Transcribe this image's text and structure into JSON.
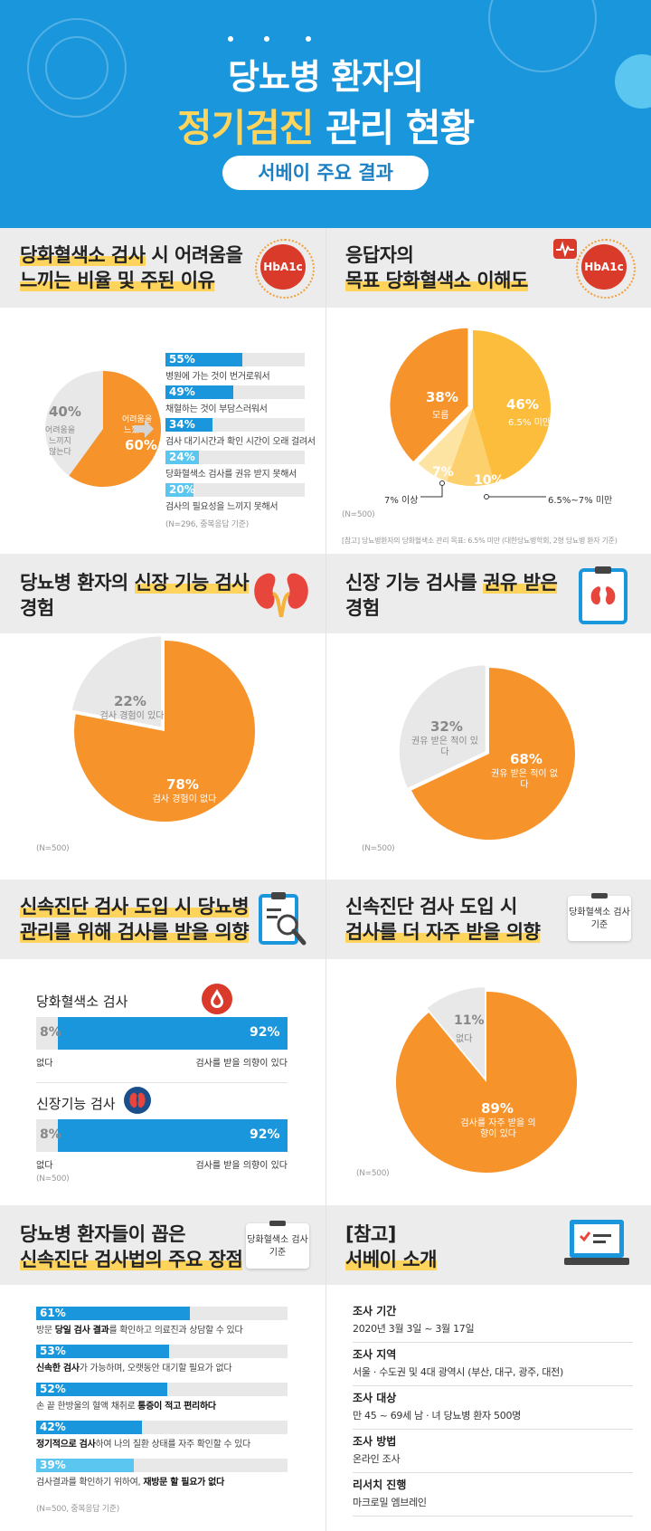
{
  "header": {
    "title_line1": "당뇨병 환자의",
    "title_line2_a": "정기검진",
    "title_line2_b": "관리 현황",
    "subtitle": "서베이 주요 결과"
  },
  "sections": {
    "s1": {
      "title_pre": "당화혈색소 검사",
      "title_mid": " 시 어려움을",
      "title_hl2": "느끼는 비율 및 주된 이유",
      "badge": "HbA1c",
      "note": "(N=296, 중복응답 기준)"
    },
    "s2": {
      "title_line1": "응답자의",
      "title_line2": "목표 당화혈색소 이해도",
      "badge": "HbA1c",
      "n_note": "(N=500)",
      "ref_note": "[참고] 당뇨병환자의 당화혈색소 관리 목표: 6.5% 미만 (대한당뇨병학회, 2형 당뇨병 환자 기준)"
    },
    "s3": {
      "title_pre": "당뇨병 환자의 ",
      "title_hl": "신장 기능 검사",
      "title_line2": "경험",
      "n_note": "(N=500)"
    },
    "s4": {
      "title_pre": "신장 기능 검사를 ",
      "title_hl": "권유 받은",
      "title_line2": "경험",
      "n_note": "(N=500)"
    },
    "s5": {
      "title_line1": "신속진단 검사 도입 시 당뇨병",
      "title_line2": "관리를 위해 검사를 받을 의향",
      "n_note": "(N=500)",
      "group1_title": "당화혈색소 검사",
      "group2_title": "신장기능 검사"
    },
    "s6": {
      "title_line1": "신속진단 검사 도입 시",
      "title_line2": "검사를 더 자주 받을 의향",
      "tag": "당화혈색소 검사 기준",
      "n_note": "(N=500)"
    },
    "s7": {
      "title_line1": "당뇨병 환자들이 꼽은",
      "title_line2": "신속진단 검사법의 주요 장점",
      "tag": "당화혈색소 검사 기준",
      "note": "(N=500, 중복응답 기준)"
    },
    "s8": {
      "title_line1": "[참고]",
      "title_line2": "서베이 소개",
      "items": [
        {
          "k": "조사 기간",
          "v": "2020년 3월 3일 ~ 3월 17일"
        },
        {
          "k": "조사 지역",
          "v": "서울 · 수도권 및 4대 광역시 (부산, 대구, 광주, 대전)"
        },
        {
          "k": "조사 대상",
          "v": "만 45 ~ 69세 남 · 녀 당뇨병 환자 500명"
        },
        {
          "k": "조사 방법",
          "v": "온라인 조사"
        },
        {
          "k": "리서치 진행",
          "v": "마크로밀 엠브레인"
        }
      ]
    }
  },
  "colors": {
    "orange": "#f7932b",
    "blue": "#1a96dc",
    "gray": "#e8e8e8",
    "yellow": "#ffd45c"
  },
  "chart_data": [
    {
      "type": "pie",
      "id": "difficulty",
      "slices": [
        {
          "label": "어려움을 느꼈다",
          "value": 60,
          "pct": "60%",
          "color": "#f7932b"
        },
        {
          "label": "어려움을 느끼지 않는다",
          "value": 40,
          "pct": "40%",
          "color": "#e8e8e8"
        }
      ]
    },
    {
      "type": "bar",
      "id": "reasons",
      "categories": [
        "병원에 가는 것이 번거로워서",
        "채혈하는 것이 부담스러워서",
        "검사 대기시간과 확인 시간이 오래 걸려서",
        "당화혈색소 검사를 권유 받지 못해서",
        "검사의 필요성을 느끼지 못해서"
      ],
      "values": [
        55,
        49,
        34,
        24,
        20
      ],
      "labels": [
        "55%",
        "49%",
        "34%",
        "24%",
        "20%"
      ],
      "colors": [
        "#1a96dc",
        "#1a96dc",
        "#1a96dc",
        "#5bc6f0",
        "#5bc6f0"
      ],
      "xlim": [
        0,
        100
      ]
    },
    {
      "type": "pie",
      "id": "target_understanding",
      "slices": [
        {
          "label": "6.5% 미만",
          "value": 46,
          "pct": "46%",
          "color": "#fdbd3c"
        },
        {
          "label": "6.5%~7% 미만",
          "value": 10,
          "pct": "10%",
          "color": "#fdd06e"
        },
        {
          "label": "7% 이상",
          "value": 7,
          "pct": "7%",
          "color": "#fee4a3"
        },
        {
          "label": "모름",
          "value": 38,
          "pct": "38%",
          "color": "#f7932b"
        }
      ]
    },
    {
      "type": "pie",
      "id": "kidney_exp",
      "slices": [
        {
          "label": "검사 경험이 없다",
          "value": 78,
          "pct": "78%",
          "color": "#f7932b"
        },
        {
          "label": "검사 경험이 있다",
          "value": 22,
          "pct": "22%",
          "color": "#e8e8e8"
        }
      ]
    },
    {
      "type": "pie",
      "id": "kidney_recommended",
      "slices": [
        {
          "label": "권유 받은 적이 없다",
          "value": 68,
          "pct": "68%",
          "color": "#f7932b"
        },
        {
          "label": "권유 받은 적이 있다",
          "value": 32,
          "pct": "32%",
          "color": "#e8e8e8"
        }
      ]
    },
    {
      "type": "bar",
      "id": "intent",
      "categories": [
        "당화혈색소 검사",
        "신장기능 검사"
      ],
      "series": [
        {
          "name": "없다",
          "values": [
            8,
            8
          ],
          "labels": [
            "8%",
            "8%"
          ]
        },
        {
          "name": "검사를 받을 의향이 있다",
          "values": [
            92,
            92
          ],
          "labels": [
            "92%",
            "92%"
          ]
        }
      ]
    },
    {
      "type": "pie",
      "id": "more_often",
      "slices": [
        {
          "label": "검사를 자주 받을 의향이 있다",
          "value": 89,
          "pct": "89%",
          "color": "#f7932b"
        },
        {
          "label": "없다",
          "value": 11,
          "pct": "11%",
          "color": "#e8e8e8"
        }
      ]
    },
    {
      "type": "bar",
      "id": "advantages",
      "categories": [
        "방문 당일 검사 결과를 확인하고 의료진과 상담할 수 있다",
        "신속한 검사가 가능하며, 오랫동안 대기할 필요가 없다",
        "손 끝 한방울의 혈액 채취로 통증이 적고 편리하다",
        "정기적으로 검사하여 나의 질환 상태를 자주 확인할 수 있다",
        "검사결과를 확인하기 위하여, 재방문 할 필요가 없다"
      ],
      "values": [
        61,
        53,
        52,
        42,
        39
      ],
      "labels": [
        "61%",
        "53%",
        "52%",
        "42%",
        "39%"
      ],
      "colors": [
        "#1a96dc",
        "#1a96dc",
        "#1a96dc",
        "#1a96dc",
        "#5bc6f0"
      ],
      "xlim": [
        0,
        100
      ]
    }
  ]
}
